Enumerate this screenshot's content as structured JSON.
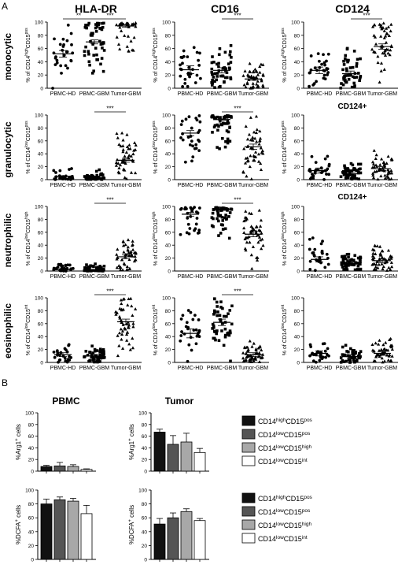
{
  "panel_labels": {
    "a": "A",
    "b": "B"
  },
  "column_titles": [
    "HLA-DR",
    "CD16",
    "CD124"
  ],
  "row_titles": [
    "monocytic",
    "granulocytic",
    "neutrophilic",
    "eosinophilic"
  ],
  "extra_titles": {
    "r1c2": "CD124+",
    "r2c2": "CD124+"
  },
  "group_labels": [
    "PBMC-HD",
    "PBMC-GBM",
    "Tumor-GBM"
  ],
  "ylabels": {
    "monocytic": {
      "base": "% of CD14",
      "sup1": "high",
      "mid": "CD15",
      "sup2": "pos"
    },
    "granulocytic": {
      "base": "% of CD14",
      "sup1": "low",
      "mid": "CD15",
      "sup2": "pos"
    },
    "neutrophilic": {
      "base": "% of CD14",
      "sup1": "low",
      "mid": "CD15",
      "sup2": "high"
    },
    "eosinophilic": {
      "base": "% of CD14",
      "sup1": "low",
      "mid": "CD15",
      "sup2": "int"
    }
  },
  "chart_data": [
    {
      "type": "scatter",
      "panel": "A",
      "ylim": [
        0,
        100
      ],
      "yticks": [
        0,
        20,
        40,
        60,
        80,
        100
      ],
      "groups": [
        "PBMC-HD",
        "PBMC-GBM",
        "Tumor-GBM"
      ],
      "markers": [
        "circle",
        "square",
        "triangle"
      ],
      "grid": [
        [
          {
            "means": [
              52,
              70,
              94
            ],
            "sem": [
              5,
              3,
              2
            ],
            "n": [
              28,
              50,
              36
            ],
            "sig": [
              {
                "a": 0,
                "b": 1,
                "label": "**"
              },
              {
                "a": 1,
                "b": 2,
                "label": "***"
              }
            ]
          },
          {
            "means": [
              28,
              27,
              14
            ],
            "sem": [
              6,
              4,
              2
            ],
            "n": [
              28,
              50,
              50
            ],
            "sig": [
              {
                "a": 1,
                "b": 2,
                "label": "***"
              }
            ]
          },
          {
            "means": [
              27,
              22,
              63
            ],
            "sem": [
              5,
              4,
              4
            ],
            "n": [
              28,
              50,
              50
            ],
            "sig": [
              {
                "a": 1,
                "b": 2,
                "label": "***"
              }
            ]
          }
        ],
        [
          {
            "means": [
              5,
              3,
              30
            ],
            "sem": [
              1,
              1,
              3
            ],
            "n": [
              28,
              50,
              50
            ],
            "sig": [
              {
                "a": 1,
                "b": 2,
                "label": "***"
              }
            ]
          },
          {
            "means": [
              72,
              93,
              51
            ],
            "sem": [
              4,
              1,
              4
            ],
            "n": [
              28,
              50,
              50
            ],
            "sig": [
              {
                "a": 1,
                "b": 2,
                "label": "***"
              }
            ]
          },
          {
            "means": [
              14,
              9,
              17
            ],
            "sem": [
              4,
              3,
              3
            ],
            "n": [
              28,
              50,
              50
            ],
            "sig": []
          }
        ],
        [
          {
            "means": [
              2,
              2,
              22
            ],
            "sem": [
              0.5,
              0.5,
              3
            ],
            "n": [
              28,
              50,
              50
            ],
            "sig": [
              {
                "a": 1,
                "b": 2,
                "label": "***"
              }
            ]
          },
          {
            "means": [
              88,
              95,
              57
            ],
            "sem": [
              3,
              1,
              4
            ],
            "n": [
              28,
              50,
              50
            ],
            "sig": [
              {
                "a": 1,
                "b": 2,
                "label": "***"
              }
            ]
          },
          {
            "means": [
              18,
              11,
              16
            ],
            "sem": [
              4,
              3,
              3
            ],
            "n": [
              28,
              50,
              50
            ],
            "sig": []
          }
        ],
        [
          {
            "means": [
              12,
              10,
              63
            ],
            "sem": [
              3,
              2,
              4
            ],
            "n": [
              28,
              50,
              50
            ],
            "sig": [
              {
                "a": 1,
                "b": 2,
                "label": "***"
              }
            ]
          },
          {
            "means": [
              45,
              62,
              12
            ],
            "sem": [
              7,
              5,
              3
            ],
            "n": [
              28,
              50,
              50
            ],
            "sig": [
              {
                "a": 1,
                "b": 2,
                "label": "***"
              }
            ]
          },
          {
            "means": [
              14,
              9,
              14
            ],
            "sem": [
              4,
              3,
              3
            ],
            "n": [
              28,
              50,
              50
            ],
            "sig": []
          }
        ]
      ]
    },
    {
      "type": "bar",
      "panel": "B",
      "ylim": [
        0,
        100
      ],
      "yticks": [
        0,
        20,
        40,
        60,
        80,
        100
      ],
      "column_titles": [
        "PBMC",
        "Tumor"
      ],
      "series": [
        {
          "name": "CD14highCD15pos",
          "label": {
            "a": "CD14",
            "b": "high",
            "c": "CD15",
            "d": "pos"
          },
          "color": "#111111"
        },
        {
          "name": "CD14lowCD15pos",
          "label": {
            "a": "CD14",
            "b": "low",
            "c": "CD15",
            "d": "pos"
          },
          "color": "#555555"
        },
        {
          "name": "CD14lowCD15high",
          "label": {
            "a": "CD14",
            "b": "low",
            "c": "CD15",
            "d": "high"
          },
          "color": "#a8a8a8"
        },
        {
          "name": "CD14lowCD15int",
          "label": {
            "a": "CD14",
            "b": "low",
            "c": "CD15",
            "d": "int"
          },
          "color": "#ffffff"
        }
      ],
      "rows": [
        {
          "ylabel": {
            "base": "%Arg1",
            "sup": "+",
            "rest": " cells"
          },
          "PBMC": {
            "values": [
              8,
              9,
              8,
              3
            ],
            "err": [
              2,
              6,
              3,
              1
            ]
          },
          "Tumor": {
            "values": [
              67,
              46,
              50,
              32
            ],
            "err": [
              5,
              15,
              15,
              7
            ]
          }
        },
        {
          "ylabel": {
            "base": "%DCFA",
            "sup": "+",
            "rest": " cells"
          },
          "PBMC": {
            "values": [
              80,
              86,
              84,
              66
            ],
            "err": [
              7,
              4,
              4,
              12
            ]
          },
          "Tumor": {
            "values": [
              51,
              60,
              69,
              56
            ],
            "err": [
              8,
              7,
              4,
              3
            ]
          }
        }
      ]
    }
  ]
}
